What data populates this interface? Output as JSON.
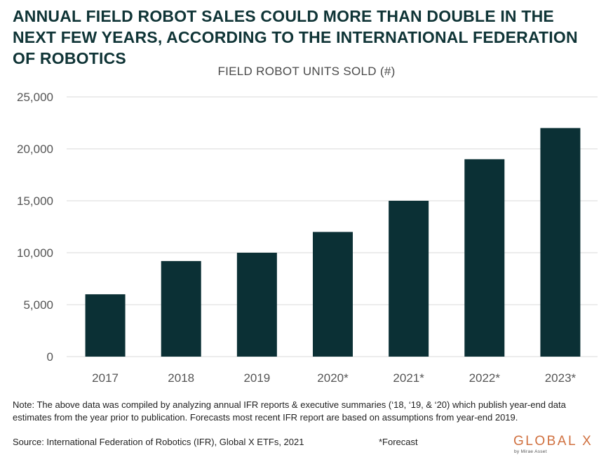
{
  "title": "ANNUAL FIELD ROBOT SALES COULD MORE THAN DOUBLE IN THE NEXT FEW YEARS, ACCORDING TO THE INTERNATIONAL FEDERATION OF ROBOTICS",
  "note": "Note: The above data was compiled by analyzing annual IFR reports & executive summaries (‘18, ‘19, & ‘20) which publish year-end data estimates from the year prior to publication. Forecasts most recent IFR report are based on assumptions from year-end 2019.",
  "source": "Source: International Federation of Robotics (IFR), Global X ETFs, 2021",
  "forecast_note": "*Forecast",
  "logo": {
    "word": "GLOBAL X",
    "sub": "by Mirae Asset"
  },
  "colors": {
    "bar": "#0b3035",
    "title": "#0f3436",
    "logo": "#d0703f",
    "grid": "#d9d9d9"
  },
  "chart_data": {
    "type": "bar",
    "title": "FIELD ROBOT UNITS SOLD (#)",
    "categories": [
      "2017",
      "2018",
      "2019",
      "2020*",
      "2021*",
      "2022*",
      "2023*"
    ],
    "values": [
      6000,
      9200,
      10000,
      12000,
      15000,
      19000,
      22000
    ],
    "yticks": [
      "0",
      "5,000",
      "10,000",
      "15,000",
      "20,000",
      "25,000"
    ],
    "ytick_values": [
      0,
      5000,
      10000,
      15000,
      20000,
      25000
    ],
    "ylim": [
      0,
      25000
    ],
    "grid": true
  }
}
